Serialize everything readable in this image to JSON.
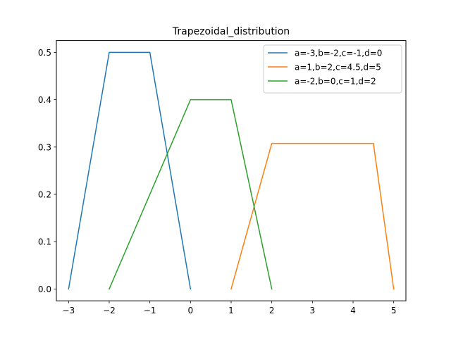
{
  "chart_data": {
    "type": "line",
    "title": "Trapezoidal_distribution",
    "xlabel": "",
    "ylabel": "",
    "xlim": [
      -3.3,
      5.3
    ],
    "ylim": [
      -0.025,
      0.525
    ],
    "xticks": [
      -3,
      -2,
      -1,
      0,
      1,
      2,
      3,
      4,
      5
    ],
    "xtick_labels": [
      "−3",
      "−2",
      "−1",
      "0",
      "1",
      "2",
      "3",
      "4",
      "5"
    ],
    "yticks": [
      0.0,
      0.1,
      0.2,
      0.3,
      0.4,
      0.5
    ],
    "ytick_labels": [
      "0.0",
      "0.1",
      "0.2",
      "0.3",
      "0.4",
      "0.5"
    ],
    "grid": false,
    "legend_position": "top-right",
    "series": [
      {
        "name": "a=-3,b=-2,c=-1,d=0",
        "color": "#1f77b4",
        "x": [
          -3,
          -2,
          -1,
          0
        ],
        "y": [
          0.0,
          0.5,
          0.5,
          0.0
        ]
      },
      {
        "name": "a=1,b=2,c=4.5,d=5",
        "color": "#ff7f0e",
        "x": [
          1,
          2,
          4.5,
          5
        ],
        "y": [
          0.0,
          0.3077,
          0.3077,
          0.0
        ]
      },
      {
        "name": "a=-2,b=0,c=1,d=2",
        "color": "#2ca02c",
        "x": [
          -2,
          0,
          1,
          2
        ],
        "y": [
          0.0,
          0.4,
          0.4,
          0.0
        ]
      }
    ]
  }
}
